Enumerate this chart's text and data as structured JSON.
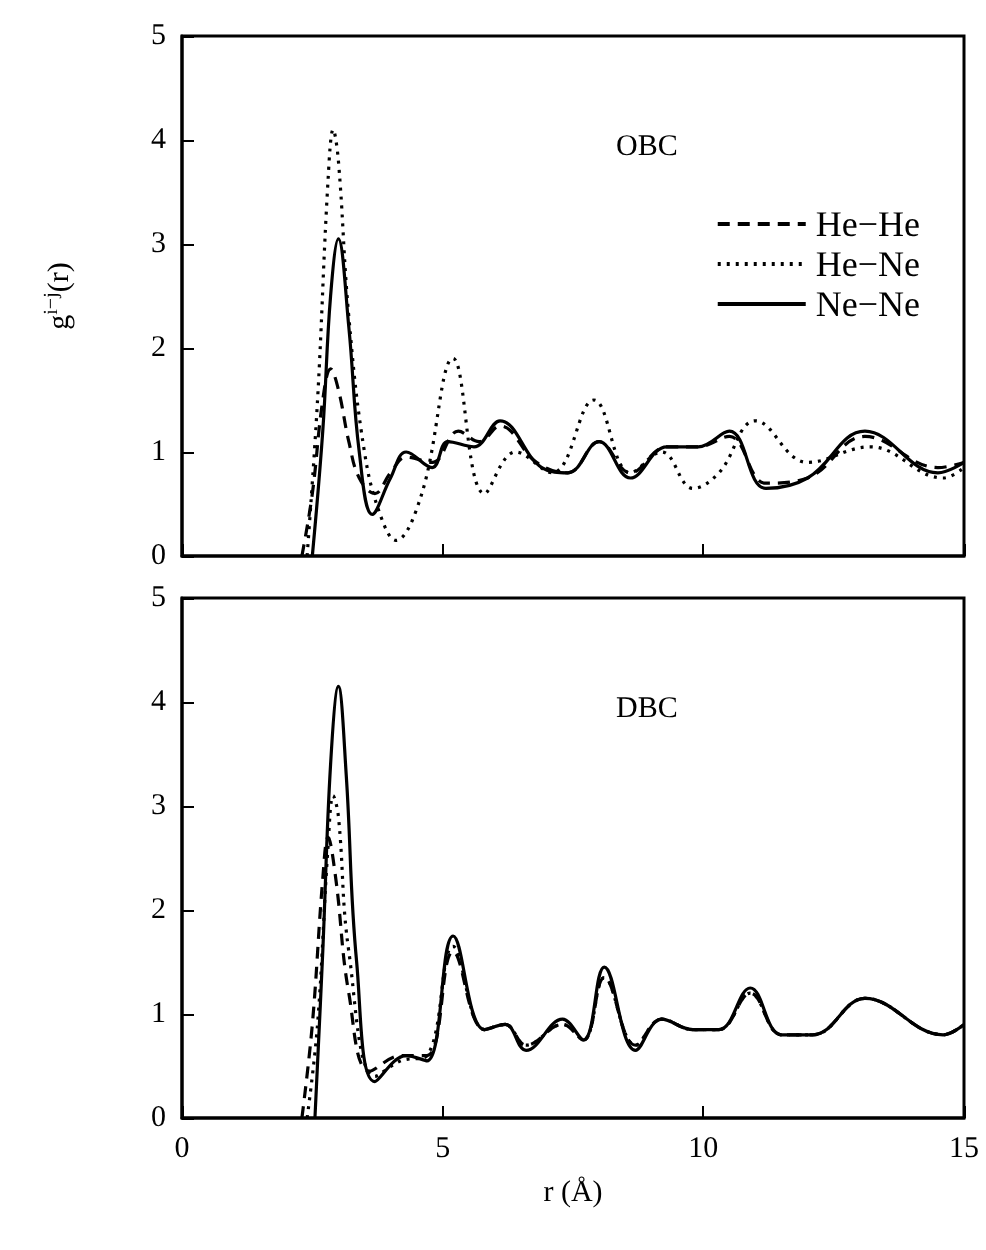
{
  "chart_data": [
    {
      "type": "line",
      "ylabel": "g$^{i−j}$(r)",
      "annotations": [
        "OBC"
      ],
      "legend": "top right",
      "grid": false,
      "marker": "none",
      "xlim": [
        0,
        15
      ],
      "xticks": [
        0,
        5,
        10,
        15
      ],
      "ylim": [
        0,
        5
      ],
      "yticks": [
        0,
        1,
        2,
        3,
        4,
        5
      ],
      "tick_labels": "y",
      "series": [
        {
          "name": "He−He",
          "color": "#000000",
          "line_style": "dashed",
          "x": [
            2.3,
            2.5,
            2.7,
            2.85,
            3.0,
            3.2,
            3.4,
            3.7,
            4.0,
            4.3,
            4.8,
            5.3,
            5.7,
            6.1,
            6.8,
            7.4,
            8.0,
            8.6,
            9.3,
            9.9,
            10.5,
            11.2,
            12.0,
            13.1,
            14.5,
            15.0
          ],
          "values": [
            0,
            0.6,
            1.5,
            1.8,
            1.6,
            1.1,
            0.75,
            0.6,
            0.8,
            0.95,
            0.9,
            1.2,
            1.1,
            1.25,
            0.9,
            0.8,
            1.1,
            0.8,
            1.05,
            1.05,
            1.15,
            0.7,
            0.75,
            1.15,
            0.85,
            0.9
          ]
        },
        {
          "name": "He−Ne",
          "color": "#000000",
          "line_style": "dotted",
          "x": [
            2.4,
            2.6,
            2.8,
            2.9,
            3.0,
            3.2,
            3.5,
            3.8,
            4.1,
            4.6,
            5.2,
            5.8,
            6.4,
            7.1,
            7.9,
            8.6,
            9.2,
            9.8,
            10.3,
            11.0,
            12.0,
            13.2,
            14.6,
            15.0
          ],
          "values": [
            0,
            1.5,
            3.6,
            4.1,
            3.8,
            2.3,
            1.0,
            0.4,
            0.15,
            0.6,
            1.9,
            0.6,
            1.0,
            0.8,
            1.5,
            0.8,
            1.0,
            0.65,
            0.8,
            1.3,
            0.9,
            1.05,
            0.75,
            0.85
          ]
        },
        {
          "name": "Ne−Ne",
          "color": "#000000",
          "line_style": "solid",
          "x": [
            2.5,
            2.7,
            2.85,
            3.0,
            3.2,
            3.4,
            3.65,
            4.0,
            4.3,
            4.8,
            5.1,
            5.6,
            6.1,
            6.9,
            7.4,
            8.0,
            8.6,
            9.3,
            9.9,
            10.5,
            11.2,
            12.0,
            13.1,
            14.5,
            15.0
          ],
          "values": [
            0,
            1.2,
            2.5,
            3.05,
            2.2,
            1.0,
            0.4,
            0.75,
            1.0,
            0.85,
            1.1,
            1.05,
            1.3,
            0.85,
            0.8,
            1.1,
            0.75,
            1.05,
            1.05,
            1.2,
            0.65,
            0.75,
            1.2,
            0.8,
            0.9
          ]
        }
      ]
    },
    {
      "type": "line",
      "xlabel": "r (Å)",
      "annotations": [
        "DBC"
      ],
      "legend": false,
      "grid": false,
      "marker": "none",
      "xlim": [
        0,
        15
      ],
      "xticks": [
        0,
        5,
        10,
        15
      ],
      "ylim": [
        0,
        5
      ],
      "yticks": [
        0,
        1,
        2,
        3,
        4,
        5
      ],
      "series": [
        {
          "color": "#000000",
          "line_style": "dashed",
          "x": [
            2.3,
            2.5,
            2.7,
            2.8,
            2.95,
            3.2,
            3.6,
            4.2,
            4.7,
            5.2,
            5.8,
            6.2,
            6.6,
            7.3,
            7.7,
            8.1,
            8.7,
            9.2,
            9.8,
            10.3,
            10.9,
            11.5,
            12.1,
            13.1,
            14.6,
            15.0
          ],
          "values": [
            0,
            0.9,
            2.3,
            2.7,
            2.3,
            1.2,
            0.45,
            0.6,
            0.6,
            1.6,
            0.85,
            0.9,
            0.7,
            0.9,
            0.75,
            1.35,
            0.7,
            0.95,
            0.85,
            0.85,
            1.2,
            0.8,
            0.8,
            1.15,
            0.8,
            0.9
          ]
        },
        {
          "color": "#000000",
          "line_style": "dotted",
          "x": [
            2.4,
            2.6,
            2.8,
            2.9,
            3.0,
            3.2,
            3.7,
            4.2,
            4.7,
            5.2,
            5.8,
            6.2,
            6.6,
            7.3,
            7.7,
            8.1,
            8.7,
            9.2,
            9.8,
            10.3,
            10.9,
            11.5,
            12.1,
            13.1,
            14.6,
            15.0
          ],
          "values": [
            0,
            0.9,
            2.6,
            3.1,
            2.9,
            1.6,
            0.4,
            0.55,
            0.6,
            1.65,
            0.85,
            0.9,
            0.7,
            0.9,
            0.75,
            1.35,
            0.7,
            0.95,
            0.85,
            0.85,
            1.2,
            0.8,
            0.8,
            1.15,
            0.8,
            0.9
          ]
        },
        {
          "color": "#000000",
          "line_style": "solid",
          "x": [
            2.55,
            2.7,
            2.85,
            3.0,
            3.15,
            3.35,
            3.7,
            4.3,
            4.7,
            5.2,
            5.8,
            6.2,
            6.6,
            7.3,
            7.7,
            8.1,
            8.7,
            9.2,
            9.8,
            10.3,
            10.9,
            11.5,
            12.1,
            13.1,
            14.6,
            15.0
          ],
          "values": [
            0,
            1.6,
            3.4,
            4.15,
            3.3,
            1.5,
            0.35,
            0.6,
            0.55,
            1.75,
            0.85,
            0.9,
            0.65,
            0.95,
            0.75,
            1.45,
            0.65,
            0.95,
            0.85,
            0.85,
            1.25,
            0.8,
            0.8,
            1.15,
            0.8,
            0.9
          ]
        }
      ]
    }
  ]
}
